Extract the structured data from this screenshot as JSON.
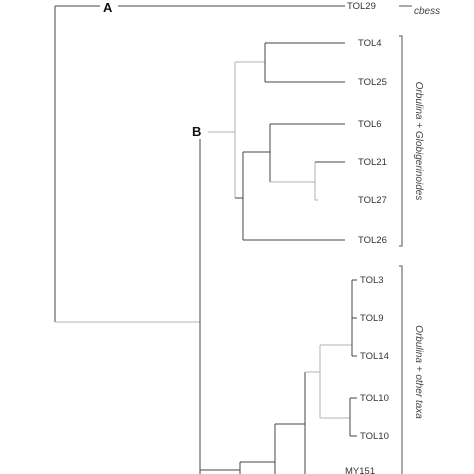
{
  "nodes": {
    "A": "A",
    "B": "B"
  },
  "leaves": [
    "TOL29",
    "TOL4",
    "TOL25",
    "TOL6",
    "TOL21",
    "TOL27",
    "TOL26",
    "TOL3",
    "TOL9",
    "TOL14",
    "TOL10",
    "TOL10",
    "MY151"
  ],
  "groups": {
    "top": "cbess",
    "orbulina_globigerinoides": "Orbulina + Globigerinoides",
    "orbulina_other": "Orbulina + other taxa"
  },
  "colors": {
    "branch_dark": "#444444",
    "branch_light": "#b3b3b3"
  }
}
